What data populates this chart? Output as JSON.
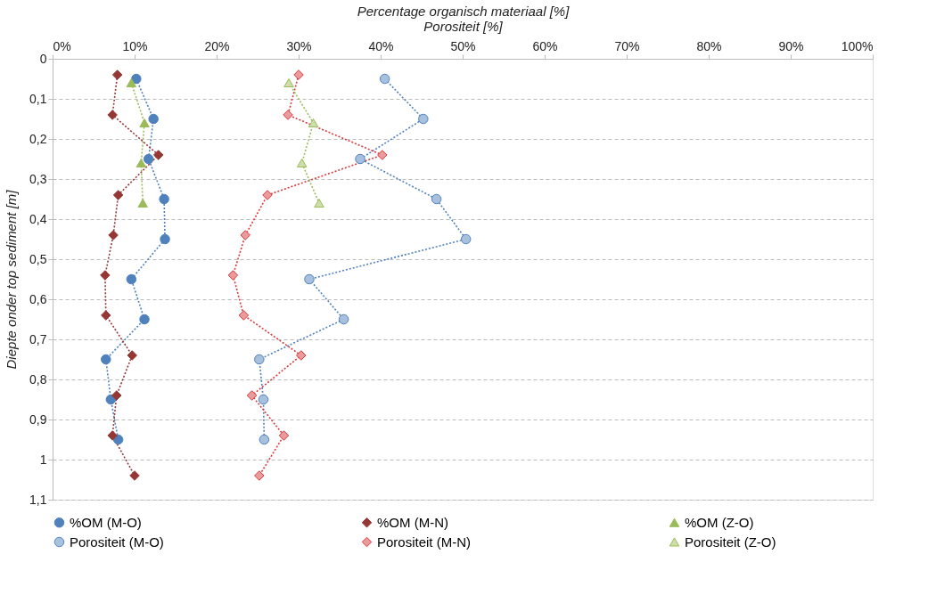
{
  "chart_data": {
    "type": "line",
    "xlabel": "Percentage organisch materiaal [%]\nPorositeit [%]",
    "ylabel": "Diepte onder top sediment [m]",
    "xlim": [
      0,
      100
    ],
    "xticks": [
      {
        "value": 0,
        "label": "0%"
      },
      {
        "value": 10,
        "label": "10%"
      },
      {
        "value": 20,
        "label": "20%"
      },
      {
        "value": 30,
        "label": "30%"
      },
      {
        "value": 40,
        "label": "40%"
      },
      {
        "value": 50,
        "label": "50%"
      },
      {
        "value": 60,
        "label": "60%"
      },
      {
        "value": 70,
        "label": "70%"
      },
      {
        "value": 80,
        "label": "80%"
      },
      {
        "value": 90,
        "label": "90%"
      },
      {
        "value": 100,
        "label": "100%"
      }
    ],
    "ylim": [
      1.1,
      0
    ],
    "yticks": [
      0,
      {
        "value": 0.1,
        "label": "0,1"
      },
      {
        "value": 0.2,
        "label": "0,2"
      },
      {
        "value": 0.3,
        "label": "0,3"
      },
      {
        "value": 0.4,
        "label": "0,4"
      },
      {
        "value": 0.5,
        "label": "0,5"
      },
      {
        "value": 0.6,
        "label": "0,6"
      },
      {
        "value": 0.7,
        "label": "0,7"
      },
      {
        "value": 0.8,
        "label": "0,8"
      },
      {
        "value": 0.9,
        "label": "0,9"
      },
      1,
      {
        "value": 1.1,
        "label": "1,1"
      }
    ],
    "grid": "y",
    "legend": "bottom",
    "line_style": "dotted",
    "series": [
      {
        "name": "%OM (M-O)",
        "color": "#4f81bd",
        "marker": "circle",
        "x": [
          10.2,
          12.3,
          11.7,
          13.6,
          13.7,
          9.6,
          11.2,
          6.5,
          7.1,
          8.0
        ],
        "values": [
          0.05,
          0.15,
          0.25,
          0.35,
          0.45,
          0.55,
          0.65,
          0.75,
          0.85,
          0.95
        ]
      },
      {
        "name": "%OM (M-N)",
        "color": "#953735",
        "marker": "diamond",
        "x": [
          7.9,
          7.3,
          12.9,
          8.0,
          7.4,
          6.4,
          6.5,
          9.7,
          7.8,
          7.3,
          10.0
        ],
        "values": [
          0.04,
          0.14,
          0.24,
          0.34,
          0.44,
          0.54,
          0.64,
          0.74,
          0.84,
          0.94,
          1.04
        ]
      },
      {
        "name": "%OM (Z-O)",
        "color": "#9bbb59",
        "marker": "triangle",
        "x": [
          9.6,
          11.2,
          10.8,
          11.0
        ],
        "values": [
          0.06,
          0.16,
          0.26,
          0.36
        ]
      },
      {
        "name": "Porositeit (M-O)",
        "color": "#4f81bd",
        "marker": "circle",
        "x": [
          40.5,
          45.2,
          37.5,
          46.8,
          50.4,
          31.3,
          35.5,
          25.2,
          25.7,
          25.8
        ],
        "values": [
          0.05,
          0.15,
          0.25,
          0.35,
          0.45,
          0.55,
          0.65,
          0.75,
          0.85,
          0.95
        ]
      },
      {
        "name": "Porositeit (M-N)",
        "color": "#d9383a",
        "marker": "diamond",
        "x": [
          30.0,
          28.7,
          40.2,
          26.2,
          23.5,
          22.0,
          23.3,
          30.3,
          24.3,
          28.2,
          25.2
        ],
        "values": [
          0.04,
          0.14,
          0.24,
          0.34,
          0.44,
          0.54,
          0.64,
          0.74,
          0.84,
          0.94,
          1.04
        ]
      },
      {
        "name": "Porositeit (Z-O)",
        "color": "#9bbb59",
        "marker": "triangle",
        "x": [
          28.8,
          31.8,
          30.4,
          32.5
        ],
        "values": [
          0.06,
          0.16,
          0.26,
          0.36
        ]
      }
    ]
  }
}
